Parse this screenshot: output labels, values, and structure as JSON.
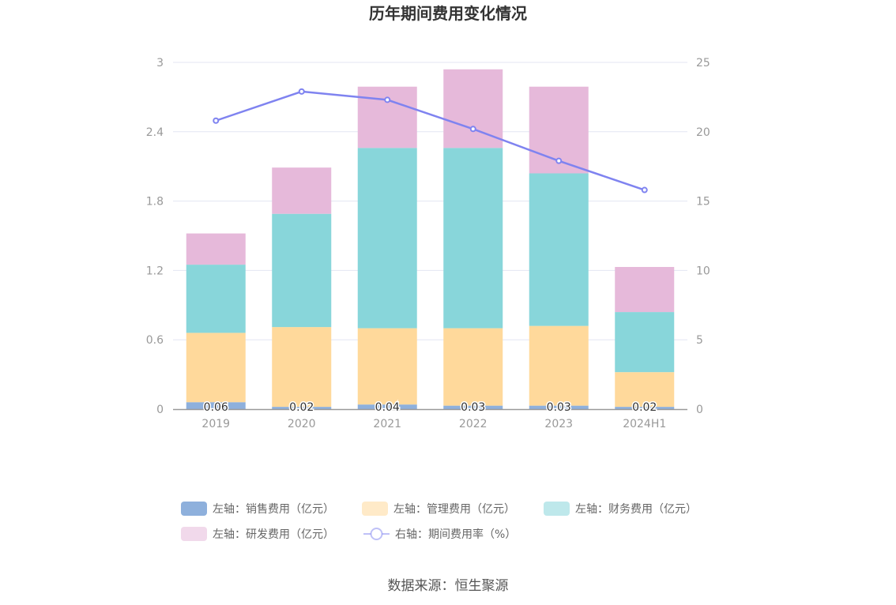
{
  "chart_data": {
    "type": "bar",
    "title": "历年期间费用变化情况",
    "categories": [
      "2019",
      "2020",
      "2021",
      "2022",
      "2023",
      "2024H1"
    ],
    "stacked": true,
    "y_left": {
      "ylim": [
        0,
        3
      ],
      "ticks": [
        "0",
        "0.6",
        "1.2",
        "1.8",
        "2.4",
        "3"
      ]
    },
    "y_right": {
      "ylim": [
        0,
        25
      ],
      "ticks": [
        "0",
        "5",
        "10",
        "15",
        "20",
        "25"
      ]
    },
    "series": [
      {
        "name": "左轴：销售费用（亿元）",
        "kind": "bar",
        "axis": "left",
        "color": "#8eb0dc",
        "values": [
          0.06,
          0.02,
          0.04,
          0.03,
          0.03,
          0.02
        ],
        "labels": [
          "0.06",
          "0.02",
          "0.04",
          "0.03",
          "0.03",
          "0.02"
        ]
      },
      {
        "name": "左轴：管理费用（亿元）",
        "kind": "bar",
        "axis": "left",
        "color": "#ffd99b",
        "values": [
          0.6,
          0.69,
          0.66,
          0.67,
          0.69,
          0.3
        ]
      },
      {
        "name": "左轴：财务费用（亿元）",
        "kind": "bar",
        "axis": "left",
        "color": "#88d6da",
        "values": [
          0.59,
          0.98,
          1.56,
          1.56,
          1.32,
          0.52
        ]
      },
      {
        "name": "左轴：研发费用（亿元）",
        "kind": "bar",
        "axis": "left",
        "color": "#e6b9da",
        "values": [
          0.27,
          0.4,
          0.53,
          0.68,
          0.75,
          0.39
        ]
      },
      {
        "name": "右轴：期间费用率（%）",
        "kind": "line",
        "axis": "right",
        "color": "#7f83f0",
        "values": [
          20.8,
          22.9,
          22.3,
          20.2,
          17.9,
          15.8
        ]
      }
    ],
    "legend_position": "bottom",
    "grid": true
  },
  "source": "数据来源：恒生聚源"
}
